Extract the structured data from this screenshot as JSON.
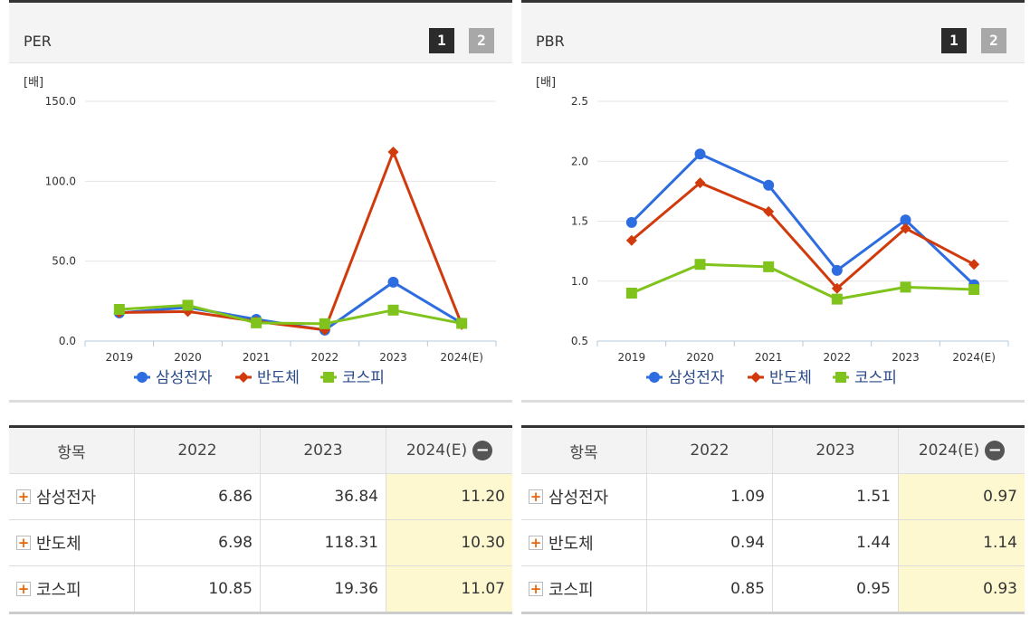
{
  "legend": [
    {
      "name": "삼성전자",
      "color": "#2d6de0",
      "marker": "circle"
    },
    {
      "name": "반도체",
      "color": "#d03a0c",
      "marker": "diamond"
    },
    {
      "name": "코스피",
      "color": "#7fc31c",
      "marker": "square"
    }
  ],
  "pager": {
    "page1": "1",
    "page2": "2"
  },
  "chart_data": [
    {
      "type": "line",
      "title": "PER",
      "unit": "[배]",
      "categories": [
        "2019",
        "2020",
        "2021",
        "2022",
        "2023",
        "2024(E)"
      ],
      "ylim": [
        0,
        150
      ],
      "yticks": [
        "0.0",
        "50.0",
        "100.0",
        "150.0"
      ],
      "ytick_values": [
        0,
        50,
        100,
        150
      ],
      "series": [
        {
          "name": "삼성전자",
          "values": [
            17.6,
            21.1,
            13.6,
            6.86,
            36.84,
            11.2
          ]
        },
        {
          "name": "반도체",
          "values": [
            17.8,
            18.5,
            12.3,
            6.98,
            118.31,
            10.3
          ]
        },
        {
          "name": "코스피",
          "values": [
            19.8,
            22.4,
            11.4,
            10.85,
            19.36,
            11.07
          ]
        }
      ]
    },
    {
      "type": "line",
      "title": "PBR",
      "unit": "[배]",
      "categories": [
        "2019",
        "2020",
        "2021",
        "2022",
        "2023",
        "2024(E)"
      ],
      "ylim": [
        0.5,
        2.5
      ],
      "yticks": [
        "0.5",
        "1.0",
        "1.5",
        "2.0",
        "2.5"
      ],
      "ytick_values": [
        0.5,
        1.0,
        1.5,
        2.0,
        2.5
      ],
      "series": [
        {
          "name": "삼성전자",
          "values": [
            1.49,
            2.06,
            1.8,
            1.09,
            1.51,
            0.97
          ]
        },
        {
          "name": "반도체",
          "values": [
            1.34,
            1.82,
            1.58,
            0.94,
            1.44,
            1.14
          ]
        },
        {
          "name": "코스피",
          "values": [
            0.9,
            1.14,
            1.12,
            0.85,
            0.95,
            0.93
          ]
        }
      ]
    }
  ],
  "tables": [
    {
      "header": [
        "항목",
        "2022",
        "2023",
        "2024(E)"
      ],
      "rows": [
        {
          "label": "삼성전자",
          "values": [
            "6.86",
            "36.84",
            "11.20"
          ]
        },
        {
          "label": "반도체",
          "values": [
            "6.98",
            "118.31",
            "10.30"
          ]
        },
        {
          "label": "코스피",
          "values": [
            "10.85",
            "19.36",
            "11.07"
          ]
        }
      ]
    },
    {
      "header": [
        "항목",
        "2022",
        "2023",
        "2024(E)"
      ],
      "rows": [
        {
          "label": "삼성전자",
          "values": [
            "1.09",
            "1.51",
            "0.97"
          ]
        },
        {
          "label": "반도체",
          "values": [
            "0.94",
            "1.44",
            "1.14"
          ]
        },
        {
          "label": "코스피",
          "values": [
            "0.85",
            "0.95",
            "0.93"
          ]
        }
      ]
    }
  ]
}
